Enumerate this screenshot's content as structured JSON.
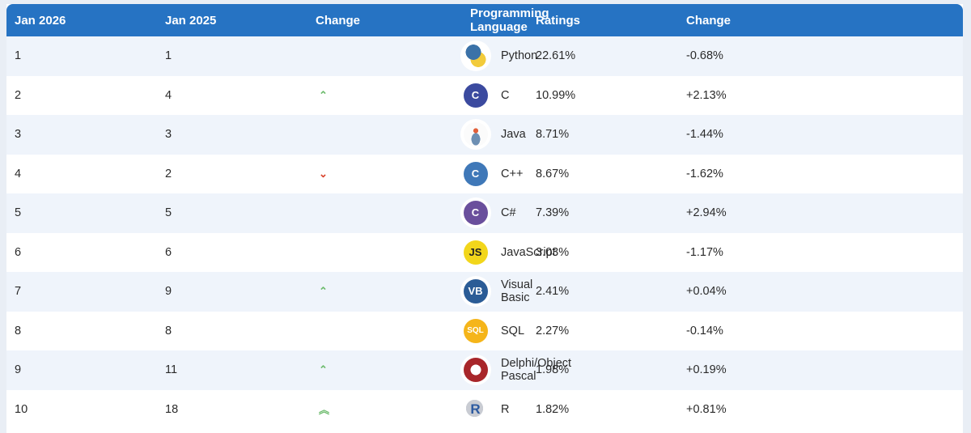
{
  "table": {
    "headers": [
      "Jan 2026",
      "Jan 2025",
      "Change",
      "Programming Language",
      "Ratings",
      "Change"
    ],
    "rows": [
      {
        "rank_2026": "1",
        "rank_2025": "1",
        "trend": "none",
        "trend_glyph": "",
        "icon": "python-icon",
        "icon_text": "",
        "language": "Python",
        "rating": "22.61%",
        "change": "-0.68%"
      },
      {
        "rank_2026": "2",
        "rank_2025": "4",
        "trend": "up",
        "trend_glyph": "⌃",
        "icon": "c-icon",
        "icon_text": "C",
        "language": "C",
        "rating": "10.99%",
        "change": "+2.13%"
      },
      {
        "rank_2026": "3",
        "rank_2025": "3",
        "trend": "none",
        "trend_glyph": "",
        "icon": "java-icon",
        "icon_text": "",
        "language": "Java",
        "rating": "8.71%",
        "change": "-1.44%"
      },
      {
        "rank_2026": "4",
        "rank_2025": "2",
        "trend": "down",
        "trend_glyph": "⌄",
        "icon": "cpp-icon",
        "icon_text": "C",
        "language": "C++",
        "rating": "8.67%",
        "change": "-1.62%"
      },
      {
        "rank_2026": "5",
        "rank_2025": "5",
        "trend": "none",
        "trend_glyph": "",
        "icon": "csharp-icon",
        "icon_text": "C",
        "language": "C#",
        "rating": "7.39%",
        "change": "+2.94%"
      },
      {
        "rank_2026": "6",
        "rank_2025": "6",
        "trend": "none",
        "trend_glyph": "",
        "icon": "javascript-icon",
        "icon_text": "JS",
        "language": "JavaScript",
        "rating": "3.03%",
        "change": "-1.17%"
      },
      {
        "rank_2026": "7",
        "rank_2025": "9",
        "trend": "up",
        "trend_glyph": "⌃",
        "icon": "visual-basic-icon",
        "icon_text": "VB",
        "language": "Visual Basic",
        "rating": "2.41%",
        "change": "+0.04%"
      },
      {
        "rank_2026": "8",
        "rank_2025": "8",
        "trend": "none",
        "trend_glyph": "",
        "icon": "sql-icon",
        "icon_text": "SQL",
        "language": "SQL",
        "rating": "2.27%",
        "change": "-0.14%"
      },
      {
        "rank_2026": "9",
        "rank_2025": "11",
        "trend": "up",
        "trend_glyph": "⌃",
        "icon": "delphi-icon",
        "icon_text": "",
        "language": "Delphi/Object Pascal",
        "rating": "1.98%",
        "change": "+0.19%"
      },
      {
        "rank_2026": "10",
        "rank_2025": "18",
        "trend": "double-up",
        "trend_glyph": "︽",
        "icon": "r-icon",
        "icon_text": "R",
        "language": "R",
        "rating": "1.82%",
        "change": "+0.81%"
      }
    ]
  },
  "colors": {
    "header_bg": "#2673c3",
    "row_alt_bg": "#eff4fb",
    "up_arrow": "#6dbb6d",
    "down_arrow": "#d9412a"
  }
}
